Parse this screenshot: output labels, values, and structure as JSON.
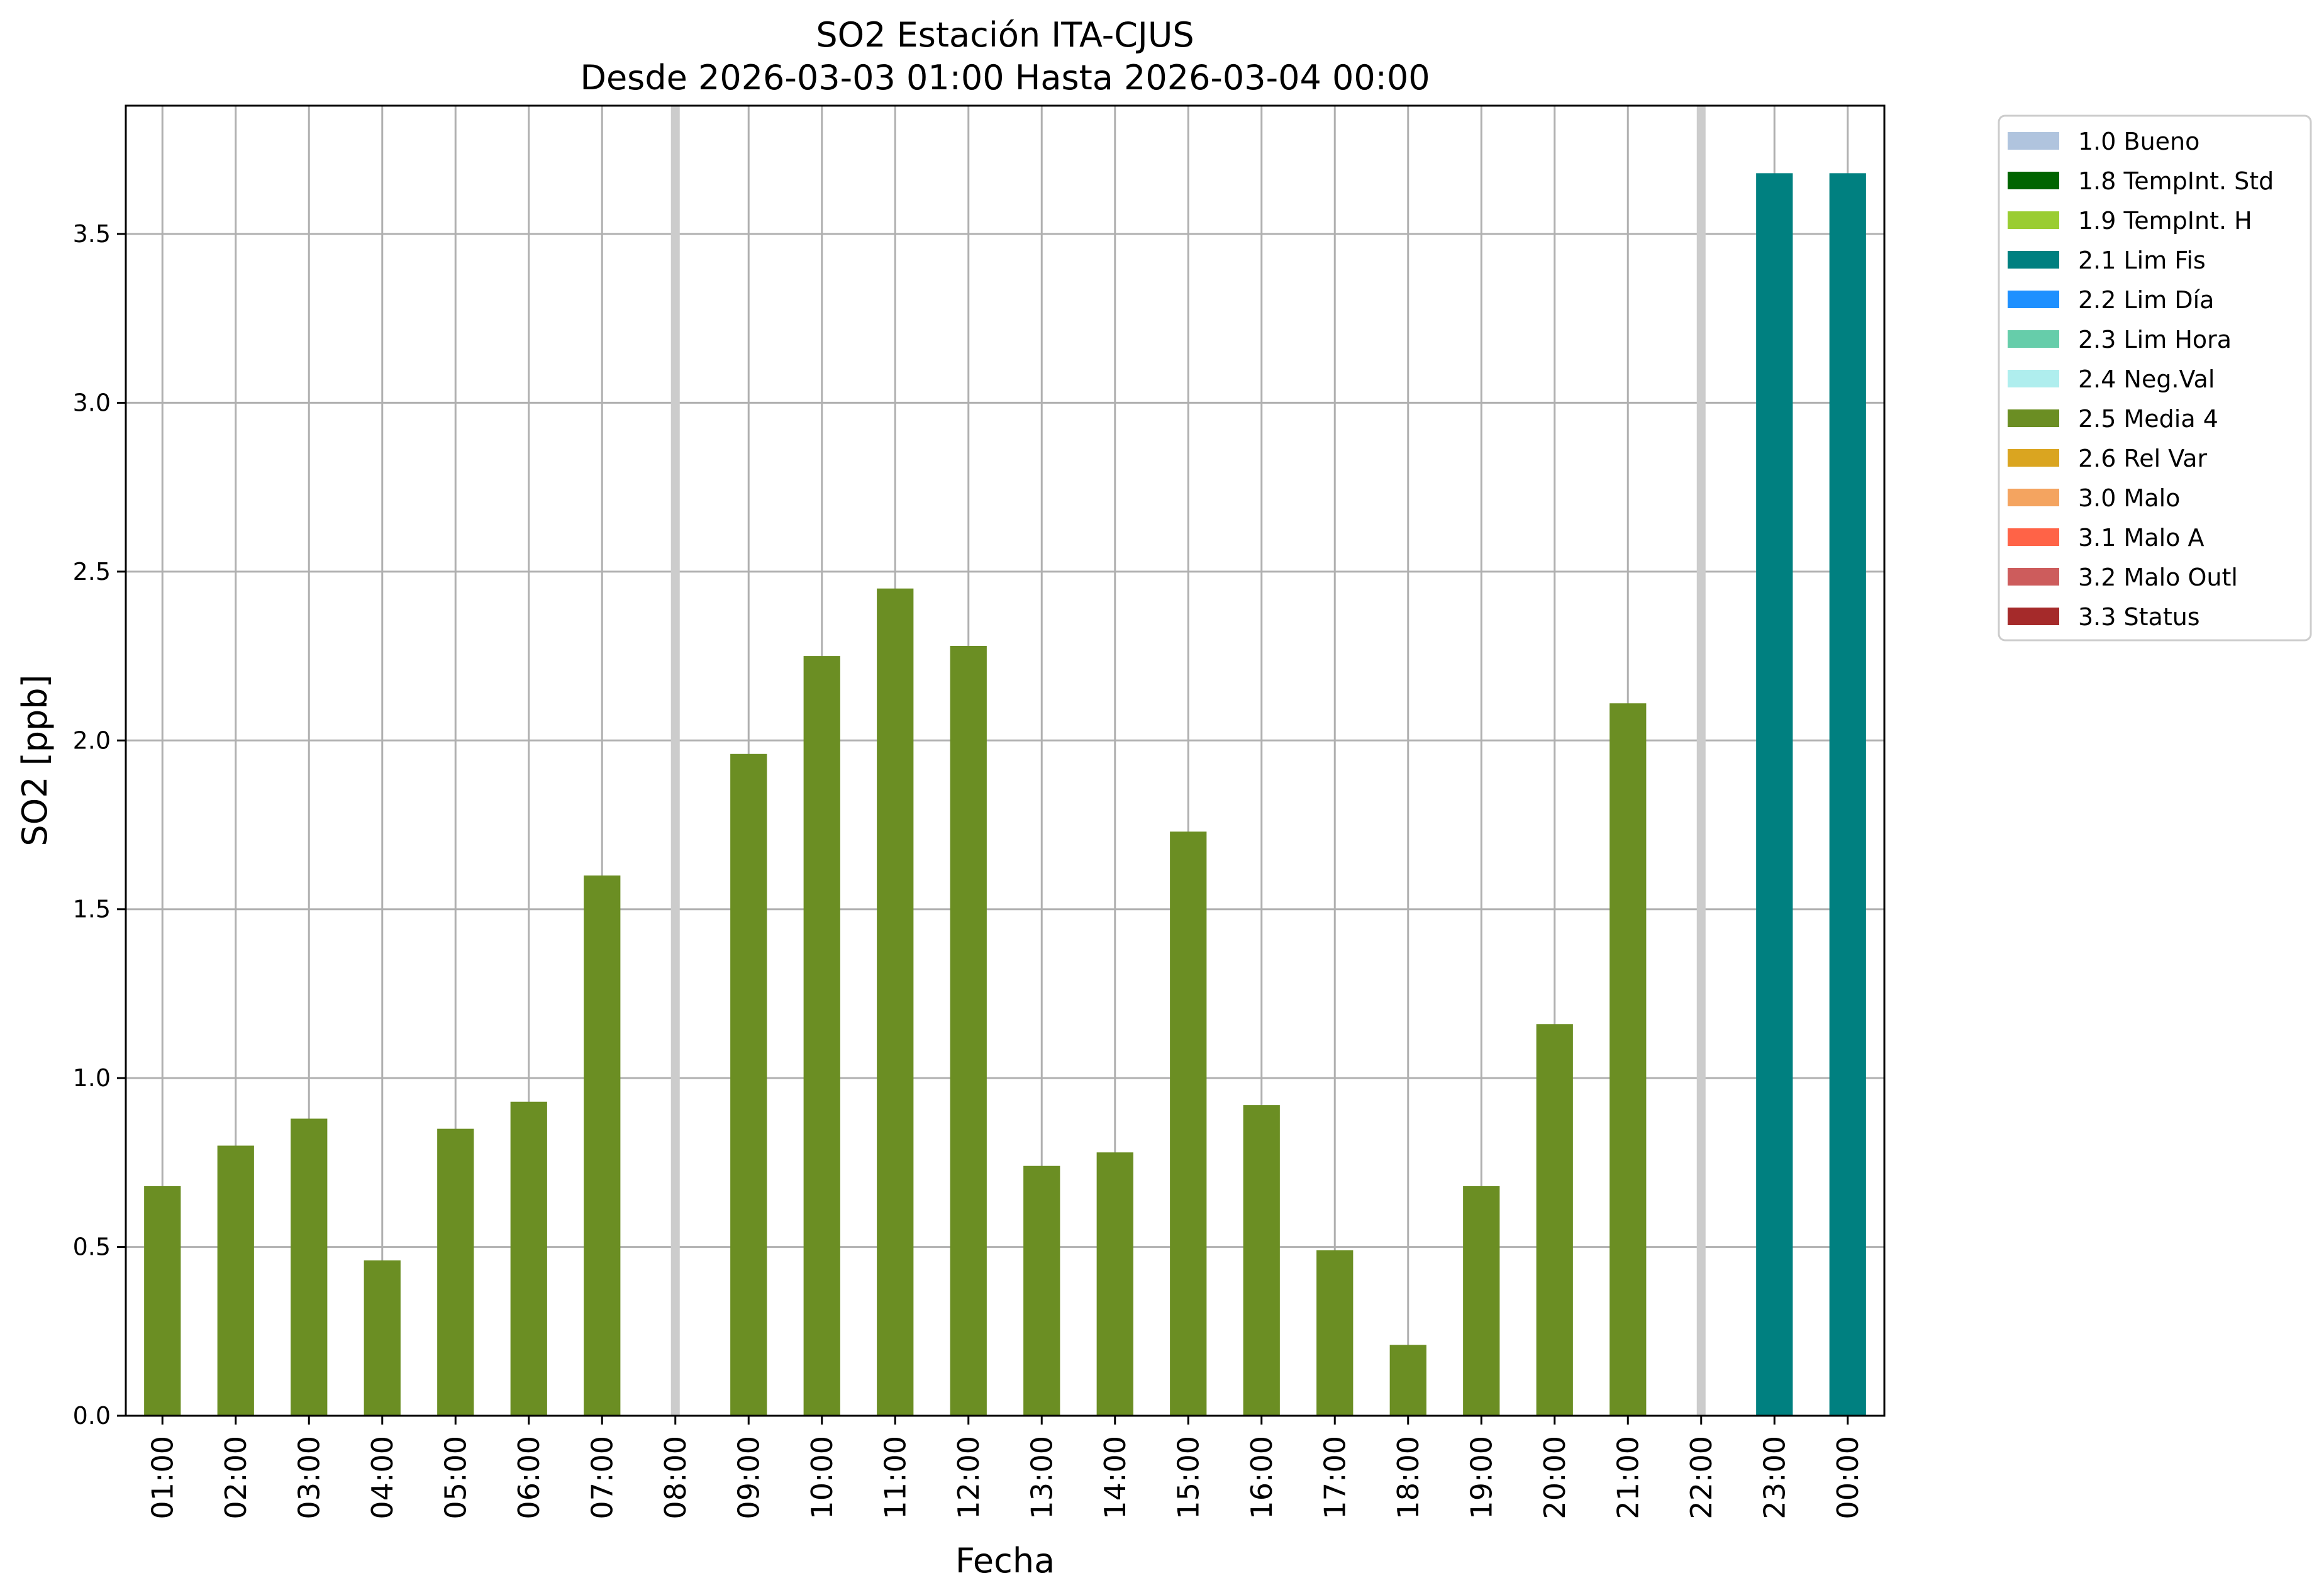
{
  "chart_data": {
    "type": "bar",
    "title": "SO2 Estación ITA-CJUS",
    "subtitle": "Desde 2026-03-03 01:00 Hasta 2026-03-04 00:00",
    "xlabel": "Fecha",
    "ylabel": "SO2 [ppb]",
    "ylim": [
      0,
      3.88
    ],
    "yticks": [
      "0.0",
      "0.5",
      "1.0",
      "1.5",
      "2.0",
      "2.5",
      "3.0",
      "3.5"
    ],
    "grid": true,
    "legend_position": "outside-right",
    "categories": [
      "01:00",
      "02:00",
      "03:00",
      "04:00",
      "05:00",
      "06:00",
      "07:00",
      "08:00",
      "09:00",
      "10:00",
      "11:00",
      "12:00",
      "13:00",
      "14:00",
      "15:00",
      "16:00",
      "17:00",
      "18:00",
      "19:00",
      "20:00",
      "21:00",
      "22:00",
      "23:00",
      "00:00"
    ],
    "values": [
      0.68,
      0.8,
      0.88,
      0.46,
      0.85,
      0.93,
      1.6,
      null,
      1.96,
      2.25,
      2.45,
      2.28,
      0.74,
      0.78,
      1.73,
      0.92,
      0.49,
      0.21,
      0.68,
      1.16,
      2.11,
      null,
      3.68,
      3.68
    ],
    "flags": [
      "2.5",
      "2.5",
      "2.5",
      "2.5",
      "2.5",
      "2.5",
      "2.5",
      null,
      "2.5",
      "2.5",
      "2.5",
      "2.5",
      "2.5",
      "2.5",
      "2.5",
      "2.5",
      "2.5",
      "2.5",
      "2.5",
      "2.5",
      "2.5",
      null,
      "2.1",
      "2.1"
    ],
    "legend": [
      {
        "label": "1.0 Bueno",
        "color": "#b0c4de"
      },
      {
        "label": "1.8 TempInt. Std",
        "color": "#006400"
      },
      {
        "label": "1.9 TempInt. H",
        "color": "#9acd32"
      },
      {
        "label": "2.1 Lim Fis",
        "color": "#008080"
      },
      {
        "label": "2.2 Lim Día",
        "color": "#1e90ff"
      },
      {
        "label": "2.3 Lim Hora",
        "color": "#66cdaa"
      },
      {
        "label": "2.4 Neg.Val",
        "color": "#afeeee"
      },
      {
        "label": "2.5 Media 4",
        "color": "#6b8e23"
      },
      {
        "label": "2.6 Rel Var",
        "color": "#daa520"
      },
      {
        "label": "3.0 Malo",
        "color": "#f4a460"
      },
      {
        "label": "3.1 Malo A",
        "color": "#ff6347"
      },
      {
        "label": "3.2 Malo Outl",
        "color": "#cd5c5c"
      },
      {
        "label": "3.3 Status",
        "color": "#a52a2a"
      }
    ],
    "missing_marker_color": "#cccccc"
  }
}
